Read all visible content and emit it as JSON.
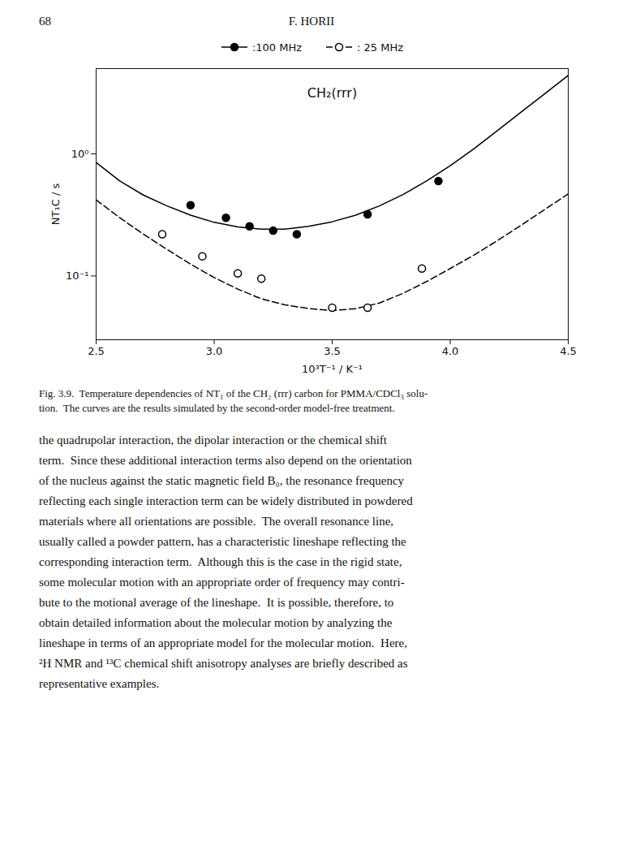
{
  "chart_data": {
    "type": "line",
    "page_number": "68",
    "header": "F. HORII",
    "xlabel": "10³T⁻¹ / K⁻¹",
    "ylabel": "NT₁C / s",
    "annotations": [
      "CH₂(rrr)"
    ],
    "log": "y",
    "xlim": [
      2.5,
      4.5
    ],
    "xticks": [
      2.5,
      {
        "value": 3.0,
        "label": "3.0"
      },
      3.5,
      {
        "value": 4.0,
        "label": "4.0"
      },
      4.5
    ],
    "ylim": [
      0.03,
      5.0
    ],
    "yticks": [
      {
        "value": 0.1,
        "label": "10⁻¹"
      },
      {
        "value": 1,
        "label": "10⁰"
      }
    ],
    "series": [
      {
        "name": ":100 MHz",
        "type": "line",
        "line_style": "solid",
        "color": "black",
        "x": [
          2.5,
          2.6,
          2.7,
          2.8,
          2.9,
          3.0,
          3.1,
          3.2,
          3.3,
          3.4,
          3.5,
          3.6,
          3.7,
          3.8,
          3.9,
          4.0,
          4.1,
          4.2,
          4.3,
          4.4,
          4.5
        ],
        "values": [
          0.85,
          0.6,
          0.46,
          0.375,
          0.315,
          0.275,
          0.252,
          0.242,
          0.242,
          0.255,
          0.278,
          0.315,
          0.375,
          0.465,
          0.6,
          0.8,
          1.1,
          1.55,
          2.2,
          3.1,
          4.4
        ]
      },
      {
        "name": ": 25 MHz",
        "type": "line",
        "line_style": "dashed",
        "color": "black",
        "x": [
          2.5,
          2.6,
          2.7,
          2.8,
          2.9,
          3.0,
          3.1,
          3.2,
          3.3,
          3.4,
          3.5,
          3.6,
          3.7,
          3.8,
          3.9,
          4.0,
          4.1,
          4.2,
          4.3,
          4.4,
          4.5
        ],
        "values": [
          0.42,
          0.3,
          0.22,
          0.165,
          0.125,
          0.097,
          0.078,
          0.065,
          0.058,
          0.054,
          0.052,
          0.054,
          0.06,
          0.072,
          0.09,
          0.115,
          0.148,
          0.195,
          0.26,
          0.35,
          0.47
        ]
      },
      {
        "name": ":100 MHz",
        "type": "scatter",
        "marker": "filled circle",
        "color": "black",
        "x": [
          2.9,
          3.05,
          3.15,
          3.25,
          3.35,
          3.65,
          3.95
        ],
        "values": [
          0.38,
          0.3,
          0.255,
          0.235,
          0.22,
          0.32,
          0.6
        ]
      },
      {
        "name": ": 25 MHz",
        "type": "scatter",
        "marker": "open circle",
        "color": "black",
        "x": [
          2.78,
          2.95,
          3.1,
          3.2,
          3.5,
          3.65,
          3.88
        ],
        "values": [
          0.22,
          0.145,
          0.105,
          0.095,
          0.055,
          0.055,
          0.115
        ]
      }
    ],
    "caption": [
      "Fig. 3.9.  Temperature dependencies of NT₁ of the CH₂ (rrr) carbon for PMMA/CDCl₃ solu-",
      "tion.  The curves are the results simulated by the second-order model-free treatment."
    ],
    "body_text": [
      "the quadrupolar interaction, the dipolar interaction or the chemical shift",
      "term.  Since these additional interaction terms also depend on the orientation",
      "of the nucleus against the static magnetic field B₀, the resonance frequency",
      "reflecting each single interaction term can be widely distributed in powdered",
      "materials where all orientations are possible.  The overall resonance line,",
      "usually called a powder pattern, has a characteristic lineshape reflecting the",
      "corresponding interaction term.  Although this is the case in the rigid state,",
      "some molecular motion with an appropriate order of frequency may contri-",
      "bute to the motional average of the lineshape.  It is possible, therefore, to",
      "obtain detailed information about the molecular motion by analyzing the",
      "lineshape in terms of an appropriate model for the molecular motion.  Here,",
      "²H NMR and ¹³C chemical shift anisotropy analyses are briefly described as",
      "representative examples."
    ]
  }
}
